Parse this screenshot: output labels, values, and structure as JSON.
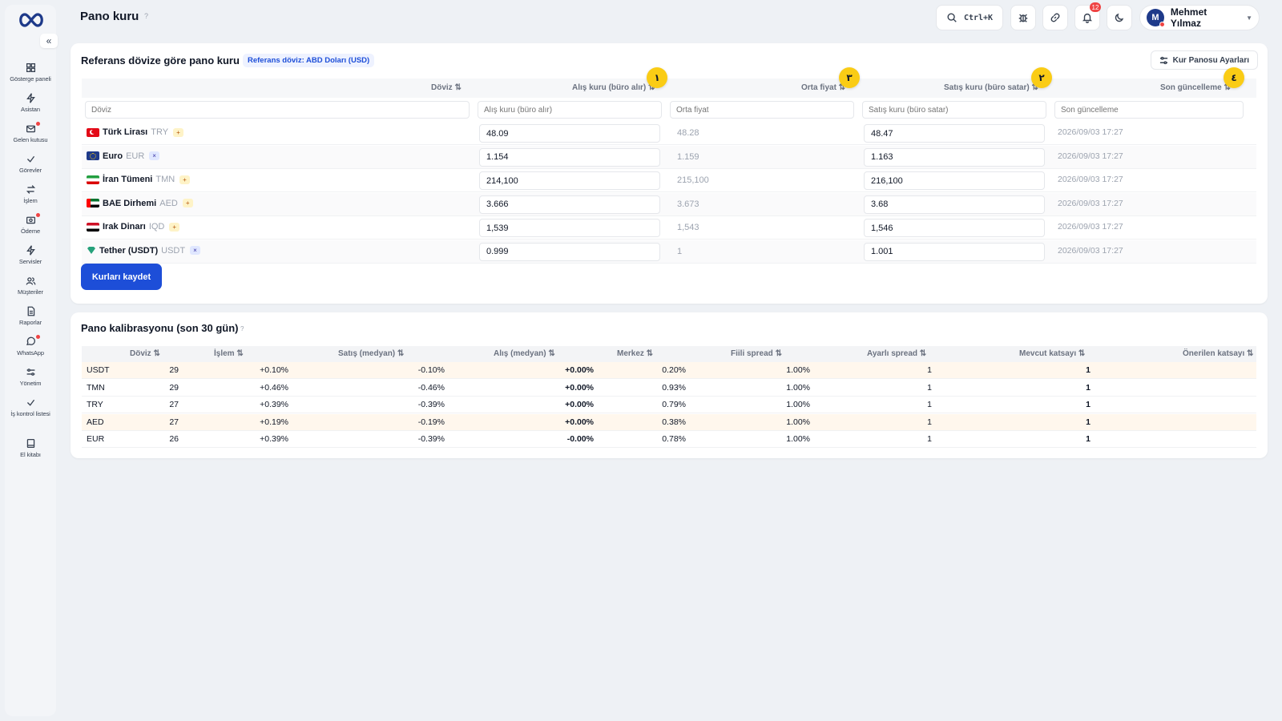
{
  "header": {
    "title": "Pano kuru",
    "title_help": "?",
    "search_shortcut": "Ctrl+K",
    "notifications_count": "12",
    "user": {
      "initial": "M",
      "name": "Mehmet Yılmaz"
    }
  },
  "sidebar": {
    "collapse": "«",
    "items": [
      {
        "label": "Gösterge paneli",
        "icon": "dashboard-icon",
        "dot": false
      },
      {
        "label": "Asistan",
        "icon": "bolt-icon",
        "dot": false
      },
      {
        "label": "Gelen kutusu",
        "icon": "inbox-icon",
        "dot": true
      },
      {
        "label": "Görevler",
        "icon": "check-icon",
        "dot": false
      },
      {
        "label": "İşlem",
        "icon": "swap-icon",
        "dot": false
      },
      {
        "label": "Ödeme",
        "icon": "payment-icon",
        "dot": true
      },
      {
        "label": "Servisler",
        "icon": "bolt-icon",
        "dot": false
      },
      {
        "label": "Müşteriler",
        "icon": "users-icon",
        "dot": false
      },
      {
        "label": "Raporlar",
        "icon": "report-icon",
        "dot": false
      },
      {
        "label": "WhatsApp",
        "icon": "chat-icon",
        "dot": true
      },
      {
        "label": "Yönetim",
        "icon": "settings-icon",
        "dot": false
      },
      {
        "label": "İş kontrol listesi",
        "icon": "check-icon",
        "dot": false
      },
      {
        "label": "El kitabı",
        "icon": "book-icon",
        "dot": false
      }
    ]
  },
  "rates": {
    "title": "Referans dövize göre pano kuru",
    "reference_badge": "Referans döviz: ABD Doları (USD)",
    "settings_button": "Kur Panosu Ayarları",
    "columns": {
      "currency": "Döviz ⇅",
      "buy": "Alış kuru (büro alır) ⇅",
      "mid": "Orta fiyat ⇅",
      "sell": "Satış kuru (büro satar) ⇅",
      "updated": "Son güncelleme ⇅"
    },
    "markers": {
      "buy": "١",
      "mid": "٣",
      "sell": "٢",
      "updated": "٤"
    },
    "filters": {
      "currency": "Döviz",
      "buy": "Alış kuru (büro alır)",
      "mid": "Orta fiyat",
      "sell": "Satış kuru (büro satar)",
      "updated": "Son güncelleme"
    },
    "rows": [
      {
        "name": "Türk Lirası",
        "code": "TRY",
        "tag": "+",
        "flag": "tr",
        "buy": "48.09",
        "mid": "48.28",
        "sell": "48.47",
        "updated": "2026/09/03 17:27"
      },
      {
        "name": "Euro",
        "code": "EUR",
        "tag": "×",
        "flag": "eu",
        "buy": "1.154",
        "mid": "1.159",
        "sell": "1.163",
        "updated": "2026/09/03 17:27"
      },
      {
        "name": "İran Tümeni",
        "code": "TMN",
        "tag": "+",
        "flag": "ir",
        "buy": "214,100",
        "mid": "215,100",
        "sell": "216,100",
        "updated": "2026/09/03 17:27"
      },
      {
        "name": "BAE Dirhemi",
        "code": "AED",
        "tag": "+",
        "flag": "ae",
        "buy": "3.666",
        "mid": "3.673",
        "sell": "3.68",
        "updated": "2026/09/03 17:27"
      },
      {
        "name": "Irak Dinarı",
        "code": "IQD",
        "tag": "+",
        "flag": "iq",
        "buy": "1,539",
        "mid": "1,543",
        "sell": "1,546",
        "updated": "2026/09/03 17:27"
      },
      {
        "name": "Tether (USDT)",
        "code": "USDT",
        "tag": "×",
        "flag": "usdt",
        "buy": "0.999",
        "mid": "1",
        "sell": "1.001",
        "updated": "2026/09/03 17:27"
      }
    ],
    "save_button": "Kurları kaydet"
  },
  "calibration": {
    "title": "Pano kalibrasyonu (son 30 gün)",
    "help": "?",
    "columns": {
      "currency": "Döviz ⇅",
      "trades": "İşlem ⇅",
      "sell_median": "Satış (medyan) ⇅",
      "buy_median": "Alış (medyan) ⇅",
      "center": "Merkez ⇅",
      "actual_spread": "Fiili spread ⇅",
      "set_spread": "Ayarlı spread ⇅",
      "current_coef": "Mevcut katsayı ⇅",
      "suggested_coef": "Önerilen katsayı ⇅"
    },
    "rows": [
      {
        "currency": "USDT",
        "trades": "29",
        "sell": "+0.10%",
        "buy": "-0.10%",
        "center": "+0.00%",
        "actual": "0.20%",
        "set": "1.00%",
        "current": "1",
        "suggested": "1",
        "highlight": true
      },
      {
        "currency": "TMN",
        "trades": "29",
        "sell": "+0.46%",
        "buy": "-0.46%",
        "center": "+0.00%",
        "actual": "0.93%",
        "set": "1.00%",
        "current": "1",
        "suggested": "1",
        "highlight": false
      },
      {
        "currency": "TRY",
        "trades": "27",
        "sell": "+0.39%",
        "buy": "-0.39%",
        "center": "+0.00%",
        "actual": "0.79%",
        "set": "1.00%",
        "current": "1",
        "suggested": "1",
        "highlight": false
      },
      {
        "currency": "AED",
        "trades": "27",
        "sell": "+0.19%",
        "buy": "-0.19%",
        "center": "+0.00%",
        "actual": "0.38%",
        "set": "1.00%",
        "current": "1",
        "suggested": "1",
        "highlight": true
      },
      {
        "currency": "EUR",
        "trades": "26",
        "sell": "+0.39%",
        "buy": "-0.39%",
        "center": "-0.00%",
        "actual": "0.78%",
        "set": "1.00%",
        "current": "1",
        "suggested": "1",
        "highlight": false
      }
    ]
  },
  "colors": {
    "accent": "#1d4ed8",
    "marker": "#facc15",
    "highlight_row": "#fff7ed",
    "badge_bg": "#eef2ff"
  }
}
